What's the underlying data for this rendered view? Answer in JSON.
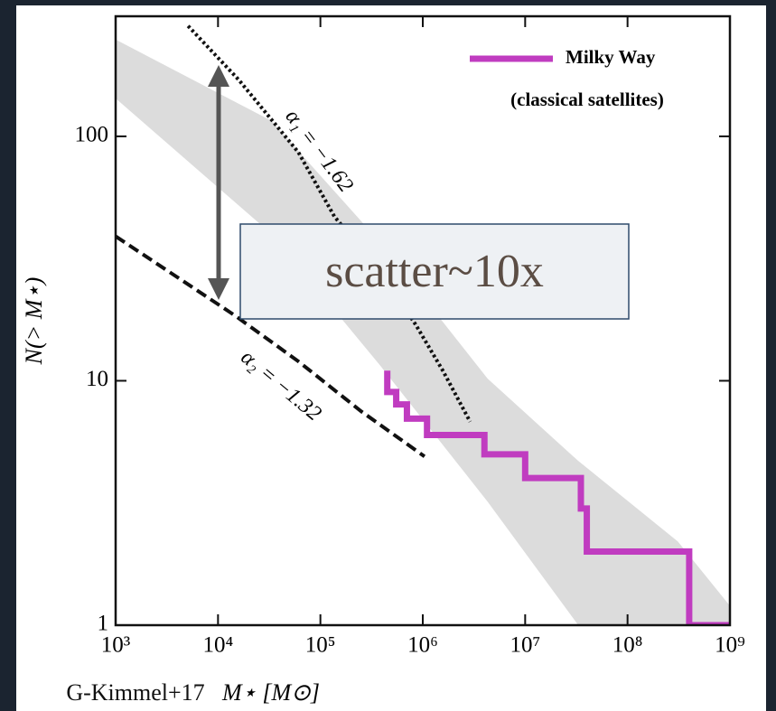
{
  "chart_data": {
    "type": "line",
    "x_label": "M⋆ [M⊙]",
    "y_label": "N(> M⋆)",
    "log_x": true,
    "log_y": true,
    "xlim": [
      1000,
      1000000000
    ],
    "ylim": [
      1,
      310
    ],
    "xticks": [
      {
        "value": 1000,
        "label": "10³"
      },
      {
        "value": 10000,
        "label": "10⁴"
      },
      {
        "value": 100000,
        "label": "10⁵"
      },
      {
        "value": 1000000,
        "label": "10⁶"
      },
      {
        "value": 10000000,
        "label": "10⁷"
      },
      {
        "value": 100000000,
        "label": "10⁸"
      },
      {
        "value": 1000000000,
        "label": "10⁹"
      }
    ],
    "yticks": [
      1,
      10,
      100
    ],
    "legend_position": "upper right",
    "legend_note": "(classical satellites)",
    "series": [
      {
        "name": "Milky Way",
        "color": "#c03cc0",
        "x": [
          450000,
          450000,
          550000,
          550000,
          700000,
          700000,
          1100000,
          1100000,
          4000000,
          4000000,
          10000000,
          10000000,
          35000000,
          35000000,
          40000000,
          40000000,
          400000000,
          400000000,
          1000000000
        ],
        "values": [
          11,
          9,
          9,
          8,
          8,
          7,
          7,
          6,
          6,
          5,
          5,
          4,
          4,
          3,
          3,
          2,
          2,
          1,
          1
        ]
      }
    ],
    "fits": [
      {
        "label": "α₁ = −1.62",
        "color": "#111111",
        "dash": "dotted",
        "x": [
          5100,
          16000,
          61000,
          137000,
          380000,
          850000,
          1570000,
          2900000
        ],
        "values": [
          283,
          170,
          86,
          47,
          28,
          17,
          11,
          6.8
        ]
      },
      {
        "label": "α₂ = −1.32",
        "color": "#111111",
        "dash": "dashed",
        "x": [
          1000,
          4300,
          14600,
          61000,
          250000,
          1040000
        ],
        "values": [
          39,
          26,
          18.5,
          12,
          7.5,
          4.9
        ]
      }
    ],
    "band": {
      "color": "#dcdcdc",
      "x": [
        1000,
        33000,
        380000,
        4300000,
        33000000,
        310000000,
        1000000000
      ],
      "upper": [
        249,
        116,
        37,
        10.2,
        4.7,
        2.2,
        1.2
      ],
      "lower": [
        143,
        40,
        11.6,
        3.2,
        1,
        1,
        1
      ]
    },
    "annotation": "scatter~10x",
    "source": "G-Kimmel+17"
  }
}
